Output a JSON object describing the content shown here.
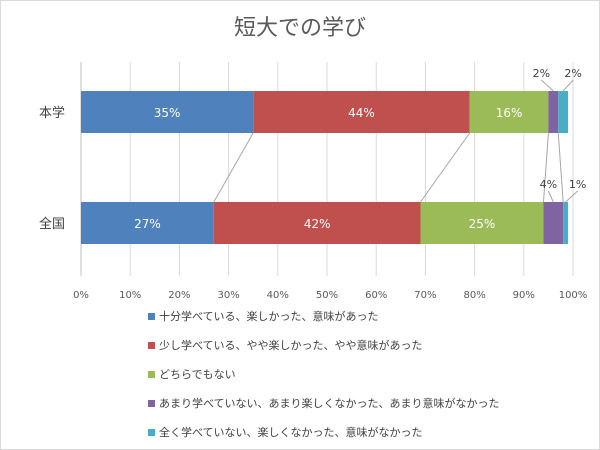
{
  "chart_data": {
    "type": "bar",
    "orientation": "horizontal",
    "stacked": true,
    "title": "短大での学び",
    "categories": [
      "本学",
      "全国"
    ],
    "series": [
      {
        "name": "十分学べている、楽しかった、意味があった",
        "color": "#4f81bd",
        "values": [
          35,
          27
        ],
        "labels": [
          "35%",
          "27%"
        ]
      },
      {
        "name": "少し学べている、やや楽しかった、やや意味があった",
        "color": "#c0504d",
        "values": [
          44,
          42
        ],
        "labels": [
          "44%",
          "42%"
        ]
      },
      {
        "name": "どちらでもない",
        "color": "#9bbb59",
        "values": [
          16,
          25
        ],
        "labels": [
          "16%",
          "25%"
        ]
      },
      {
        "name": "あまり学べていない、あまり楽しくなかった、あまり意味がなかった",
        "color": "#8064a2",
        "values": [
          2,
          4
        ],
        "labels": [
          "2%",
          "4%"
        ]
      },
      {
        "name": "全く学べていない、楽しくなかった、意味がなかった",
        "color": "#4bacc6",
        "values": [
          2,
          1
        ],
        "labels": [
          "2%",
          "1%"
        ]
      }
    ],
    "xlim": [
      0,
      100
    ],
    "xticks": [
      "0%",
      "10%",
      "20%",
      "30%",
      "40%",
      "50%",
      "60%",
      "70%",
      "80%",
      "90%",
      "100%"
    ],
    "grid": true,
    "series_lines": true,
    "legend_position": "bottom"
  }
}
